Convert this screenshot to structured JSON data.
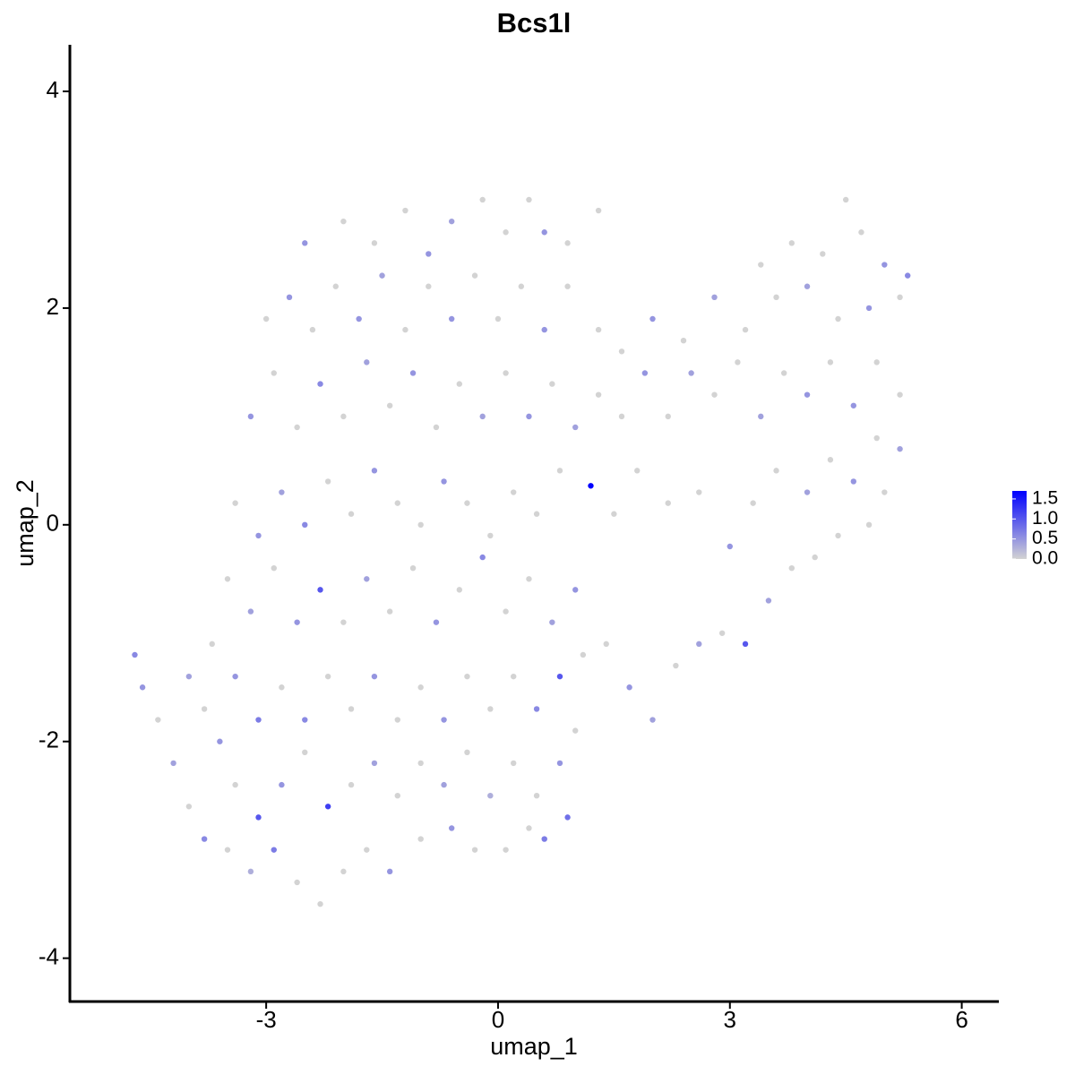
{
  "chart_data": {
    "type": "scatter",
    "title": "Bcs1l",
    "x_label": "umap_1",
    "y_label": "umap_2",
    "xlim": [
      -5.54,
      6.48
    ],
    "ylim": [
      -4.4,
      4.43
    ],
    "xticks": [
      -3,
      0,
      3,
      6
    ],
    "yticks": [
      -4,
      -2,
      0,
      2,
      4
    ],
    "low_color": "#d3d3d3",
    "high_color": "#0000ff",
    "colorlim": [
      0,
      1.7
    ],
    "colorticks": [
      {
        "value": 0,
        "label": "0.0"
      },
      {
        "value": 0.5,
        "label": "0.5"
      },
      {
        "value": 1,
        "label": "1.0"
      },
      {
        "value": 1.5,
        "label": "1.5"
      }
    ],
    "x": [
      -4.7,
      -4.6,
      -4.4,
      -4.2,
      -4.0,
      -3.8,
      -3.5,
      -3.2,
      -2.9,
      -2.6,
      -2.3,
      -2.0,
      -1.7,
      -1.4,
      -1.0,
      -0.6,
      -0.3,
      0.1,
      0.4,
      0.6,
      0.9,
      -4.0,
      -3.8,
      -3.6,
      -3.4,
      -3.1,
      -2.8,
      -2.5,
      -2.2,
      -1.9,
      -1.6,
      -1.3,
      -1.0,
      -0.7,
      -0.4,
      -0.1,
      0.2,
      0.5,
      0.8,
      1.0,
      -3.7,
      -3.4,
      -3.1,
      -2.8,
      -2.5,
      -2.2,
      -1.9,
      -1.6,
      -1.3,
      -1.0,
      -0.7,
      -0.4,
      -0.1,
      0.2,
      0.5,
      0.8,
      1.1,
      -3.5,
      -3.2,
      -2.9,
      -2.6,
      -2.3,
      -2.0,
      -1.7,
      -1.4,
      -1.1,
      -0.8,
      -0.5,
      -0.2,
      0.1,
      0.4,
      0.7,
      1.0,
      1.4,
      1.7,
      2.0,
      2.3,
      2.6,
      2.9,
      3.2,
      3.5,
      3.8,
      4.1,
      4.4,
      4.8,
      5.0,
      -3.4,
      -3.1,
      -2.8,
      -2.5,
      -2.2,
      -1.9,
      -1.6,
      -1.3,
      -1.0,
      -0.7,
      -0.4,
      -0.1,
      0.2,
      0.5,
      0.8,
      1.2,
      1.5,
      1.8,
      2.2,
      2.6,
      3.0,
      3.3,
      3.6,
      4.0,
      4.3,
      4.6,
      4.9,
      5.2,
      -3.2,
      -2.9,
      -2.6,
      -2.3,
      -2.0,
      -1.7,
      -1.4,
      -1.1,
      -0.8,
      -0.5,
      -0.2,
      0.1,
      0.4,
      0.7,
      1.0,
      1.3,
      1.6,
      1.9,
      2.2,
      2.5,
      2.8,
      3.1,
      3.4,
      3.7,
      4.0,
      4.3,
      4.6,
      4.9,
      5.2,
      -3.0,
      -2.7,
      -2.4,
      -2.1,
      -1.8,
      -1.5,
      -1.2,
      -0.9,
      -0.6,
      -0.3,
      0.0,
      0.3,
      0.6,
      0.9,
      1.3,
      1.6,
      2.0,
      2.4,
      2.8,
      3.2,
      3.6,
      4.0,
      4.4,
      4.8,
      5.2,
      -2.5,
      -2.0,
      -1.6,
      -1.2,
      -0.9,
      -0.6,
      -0.2,
      0.1,
      0.4,
      0.6,
      0.9,
      1.3,
      3.4,
      3.8,
      4.2,
      4.5,
      4.7,
      5.0,
      5.3
    ],
    "y": [
      -1.2,
      -1.5,
      -1.8,
      -2.2,
      -2.6,
      -2.9,
      -3.0,
      -3.2,
      -3.0,
      -3.3,
      -3.5,
      -3.2,
      -3.0,
      -3.2,
      -2.9,
      -2.8,
      -3.0,
      -3.0,
      -2.8,
      -2.9,
      -2.7,
      -1.4,
      -1.7,
      -2.0,
      -2.4,
      -2.7,
      -2.4,
      -2.1,
      -2.6,
      -2.4,
      -2.2,
      -2.5,
      -2.2,
      -2.4,
      -2.1,
      -2.5,
      -2.2,
      -2.5,
      -2.2,
      -1.9,
      -1.1,
      -1.4,
      -1.8,
      -1.5,
      -1.8,
      -1.4,
      -1.7,
      -1.4,
      -1.8,
      -1.5,
      -1.8,
      -1.4,
      -1.7,
      -1.4,
      -1.7,
      -1.4,
      -1.2,
      -0.5,
      -0.8,
      -0.4,
      -0.9,
      -0.6,
      -0.9,
      -0.5,
      -0.8,
      -0.4,
      -0.9,
      -0.6,
      -0.3,
      -0.8,
      -0.5,
      -0.9,
      -0.6,
      -1.1,
      -1.5,
      -1.8,
      -1.3,
      -1.1,
      -1.0,
      -1.1,
      -0.7,
      -0.4,
      -0.3,
      -0.1,
      0.0,
      0.3,
      0.2,
      -0.1,
      0.3,
      0.0,
      0.4,
      0.1,
      0.5,
      0.2,
      0.0,
      0.4,
      0.2,
      -0.1,
      0.3,
      0.1,
      0.5,
      0.36,
      0.1,
      0.5,
      0.2,
      0.3,
      -0.2,
      0.2,
      0.5,
      0.3,
      0.6,
      0.4,
      0.8,
      0.7,
      1.0,
      1.4,
      0.9,
      1.3,
      1.0,
      1.5,
      1.1,
      1.4,
      0.9,
      1.3,
      1.0,
      1.4,
      1.0,
      1.3,
      0.9,
      1.2,
      1.0,
      1.4,
      1.0,
      1.4,
      1.2,
      1.5,
      1.0,
      1.4,
      1.2,
      1.5,
      1.1,
      1.5,
      1.2,
      1.9,
      2.1,
      1.8,
      2.2,
      1.9,
      2.3,
      1.8,
      2.2,
      1.9,
      2.3,
      1.9,
      2.2,
      1.8,
      2.2,
      1.8,
      1.6,
      1.9,
      1.7,
      2.1,
      1.8,
      2.1,
      2.2,
      1.9,
      2.0,
      2.1,
      2.6,
      2.8,
      2.6,
      2.9,
      2.5,
      2.8,
      3.0,
      2.7,
      3.0,
      2.7,
      2.6,
      2.9,
      2.4,
      2.6,
      2.5,
      3.0,
      2.7,
      2.4,
      2.3
    ],
    "values": [
      0.6,
      0.5,
      0,
      0.4,
      0,
      0.6,
      0,
      0.3,
      0.7,
      0,
      0,
      0,
      0,
      0.5,
      0,
      0.5,
      0,
      0,
      0,
      0.7,
      0.8,
      0.4,
      0,
      0.5,
      0,
      1.0,
      0.5,
      0,
      1.2,
      0,
      0.4,
      0,
      0,
      0.4,
      0,
      0.3,
      0,
      0,
      0.5,
      0,
      0,
      0.5,
      0.7,
      0,
      0.6,
      0,
      0,
      0.5,
      0,
      0,
      0.5,
      0,
      0,
      0,
      0.6,
      1.0,
      0,
      0,
      0.4,
      0,
      0.5,
      1.0,
      0,
      0.4,
      0,
      0,
      0.5,
      0,
      0.6,
      0,
      0,
      0.4,
      0.5,
      0,
      0.5,
      0.4,
      0,
      0.4,
      0,
      1.0,
      0.4,
      0,
      0,
      0,
      0,
      0,
      0,
      0.5,
      0.4,
      0.6,
      0,
      0,
      0.5,
      0,
      0,
      0.5,
      0,
      0,
      0,
      0,
      0,
      1.7,
      0,
      0,
      0,
      0,
      0.5,
      0,
      0,
      0.4,
      0,
      0.5,
      0,
      0.4,
      0.5,
      0,
      0,
      0.6,
      0,
      0.4,
      0,
      0.5,
      0,
      0,
      0.4,
      0,
      0.5,
      0,
      0.4,
      0,
      0,
      0.5,
      0,
      0.4,
      0,
      0,
      0.4,
      0,
      0.5,
      0,
      0.5,
      0,
      0,
      0,
      0.5,
      0,
      0,
      0.5,
      0.4,
      0,
      0,
      0.5,
      0,
      0,
      0,
      0.5,
      0,
      0,
      0,
      0.5,
      0,
      0.4,
      0,
      0,
      0.4,
      0,
      0.5,
      0,
      0.5,
      0,
      0,
      0,
      0.5,
      0.4,
      0,
      0,
      0,
      0.5,
      0,
      0,
      0,
      0,
      0,
      0,
      0,
      0.5,
      0.6
    ]
  }
}
